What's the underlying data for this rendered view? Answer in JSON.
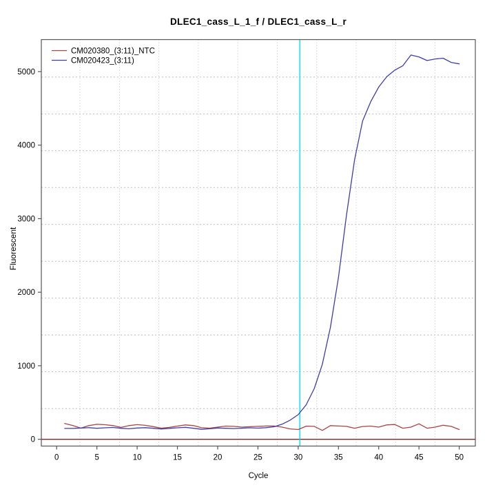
{
  "chart_data": {
    "type": "line",
    "title": "DLEC1_cass_L_1_f / DLEC1_cass_L_r",
    "xlabel": "Cycle",
    "ylabel": "Fluorescent",
    "x_range": [
      -1.9,
      52.0
    ],
    "y_range": [
      -92,
      5435
    ],
    "x_ticks": [
      0,
      5,
      10,
      15,
      20,
      25,
      30,
      35,
      40,
      45,
      50
    ],
    "y_ticks": [
      0,
      1000,
      2000,
      3000,
      4000,
      5000
    ],
    "grid": {
      "color": "#bcbcbc",
      "style": "dotted",
      "x_lines": [
        2.9,
        7.8,
        12.7,
        17.6,
        22.5,
        27.4,
        32.3,
        37.2,
        42.1,
        47.0
      ],
      "y_lines": [
        417,
        918,
        1419,
        1920,
        2421,
        2922,
        3423,
        3924,
        4425,
        4926
      ]
    },
    "threshold_line": {
      "value": 0,
      "color": "#8B2323"
    },
    "ct_line": {
      "cycle": 30.2,
      "color": "#00E0F0"
    },
    "legend": {
      "position": "top-left"
    },
    "x": [
      1,
      2,
      3,
      4,
      5,
      6,
      7,
      8,
      9,
      10,
      11,
      12,
      13,
      14,
      15,
      16,
      17,
      18,
      19,
      20,
      21,
      22,
      23,
      24,
      25,
      26,
      27,
      28,
      29,
      30,
      31,
      32,
      33,
      34,
      35,
      36,
      37,
      38,
      39,
      40,
      41,
      42,
      43,
      44,
      45,
      46,
      47,
      48,
      49,
      50
    ],
    "series": [
      {
        "name": "CM020380_(3:11)_NTC",
        "color": "#A64444",
        "values": [
          215,
          188,
          152,
          186,
          204,
          198,
          186,
          162,
          186,
          199,
          190,
          172,
          152,
          162,
          180,
          196,
          186,
          157,
          152,
          166,
          180,
          176,
          166,
          171,
          176,
          181,
          181,
          166,
          141,
          133,
          179,
          176,
          121,
          186,
          181,
          176,
          151,
          174,
          180,
          166,
          196,
          201,
          151,
          166,
          211,
          151,
          166,
          191,
          176,
          133
        ]
      },
      {
        "name": "CM020423_(3:11)",
        "color": "#3C3CAC",
        "values": [
          148,
          148,
          153,
          158,
          150,
          156,
          161,
          150,
          143,
          153,
          158,
          150,
          140,
          149,
          156,
          163,
          150,
          136,
          143,
          153,
          150,
          146,
          151,
          156,
          152,
          158,
          170,
          205,
          260,
          335,
          470,
          690,
          1020,
          1520,
          2200,
          3050,
          3800,
          4330,
          4590,
          4790,
          4930,
          5020,
          5080,
          5225,
          5200,
          5150,
          5172,
          5182,
          5125,
          5105
        ]
      }
    ]
  }
}
